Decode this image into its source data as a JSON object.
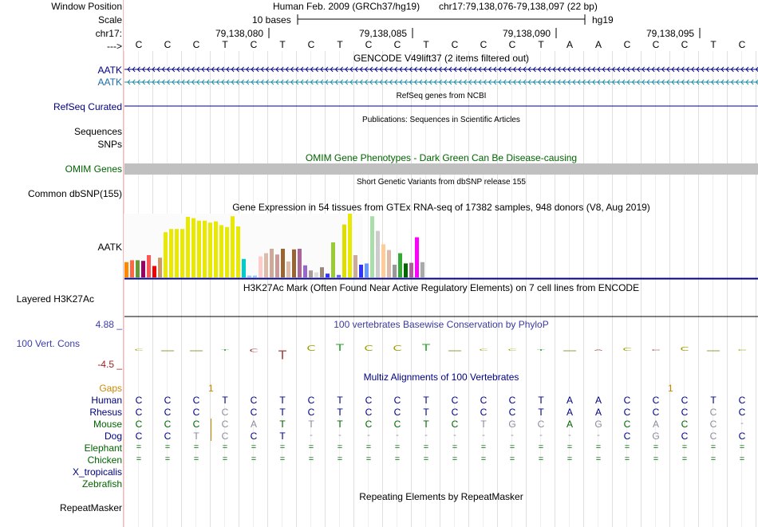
{
  "labels": {
    "window_position": "Window Position",
    "scale": "Scale",
    "chrom": "chr17:",
    "strand": "--->",
    "gene1": "AATK",
    "gene2": "AATK",
    "refseq": "RefSeq Curated",
    "sequences": "Sequences",
    "snps": "SNPs",
    "omim_genes": "OMIM Genes",
    "common_dbsnp": "Common dbSNP(155)",
    "gtex_gene": "AATK",
    "h3k27ac": "Layered H3K27Ac",
    "cons_max": "4.88 _",
    "cons_label": "100 Vert. Cons",
    "cons_min": "-4.5 _",
    "gaps": "Gaps",
    "repeatmasker": "RepeatMasker"
  },
  "header": {
    "assembly": "Human Feb. 2009 (GRCh37/hg19)",
    "position": "chr17:79,138,076-79,138,097 (22 bp)",
    "scale_bases": "10 bases",
    "scale_db": "hg19",
    "ticks": [
      "79,138,080",
      "79,138,085",
      "79,138,090",
      "79,138,095"
    ]
  },
  "sequence": [
    "C",
    "C",
    "C",
    "T",
    "C",
    "T",
    "C",
    "T",
    "C",
    "C",
    "T",
    "C",
    "C",
    "C",
    "T",
    "A",
    "A",
    "C",
    "C",
    "C",
    "T",
    "C"
  ],
  "track_titles": {
    "gencode": "GENCODE V49lift37 (2 items filtered out)",
    "refseq": "RefSeq genes from NCBI",
    "publications": "Publications: Sequences in Scientific Articles",
    "omim": "OMIM Gene Phenotypes - Dark Green Can Be Disease-causing",
    "dbsnp": "Short Genetic Variants from dbSNP release 155",
    "gtex": "Gene Expression in 54 tissues from GTEx RNA-seq of 17382 samples, 948 donors (V8, Aug 2019)",
    "h3k27ac": "H3K27Ac Mark (Often Found Near Active Regulatory Elements) on 7 cell lines from ENCODE",
    "phylop": "100 vertebrates Basewise Conservation by PhyloP",
    "multiz": "Multiz Alignments of 100 Vertebrates",
    "repeatmasker": "Repeating Elements by RepeatMasker"
  },
  "gaps_marks": [
    "1",
    "1"
  ],
  "alignment": [
    {
      "species": "Human",
      "color": "#000080",
      "bases": [
        "C",
        "C",
        "C",
        "T",
        "C",
        "T",
        "C",
        "T",
        "C",
        "C",
        "T",
        "C",
        "C",
        "C",
        "T",
        "A",
        "A",
        "C",
        "C",
        "C",
        "T",
        "C"
      ]
    },
    {
      "species": "Rhesus",
      "color": "#000080",
      "bases": [
        "C",
        "C",
        "C",
        "C",
        "C",
        "T",
        "C",
        "T",
        "C",
        "C",
        "T",
        "C",
        "C",
        "C",
        "T",
        "A",
        "A",
        "C",
        "C",
        "C",
        "C",
        "C"
      ]
    },
    {
      "species": "Mouse",
      "color": "#006400",
      "bases": [
        "C",
        "C",
        "C",
        "C",
        "A",
        "T",
        "T",
        "T",
        "C",
        "C",
        "T",
        "C",
        "T",
        "G",
        "C",
        "A",
        "G",
        "C",
        "A",
        "C",
        "C",
        "-"
      ]
    },
    {
      "species": "Dog",
      "color": "#000080",
      "bases": [
        "C",
        "C",
        "T",
        "C",
        "C",
        "T",
        "-",
        "-",
        "-",
        "-",
        "-",
        "-",
        "-",
        "-",
        "-",
        "-",
        "-",
        "C",
        "G",
        "C",
        "C",
        "C"
      ]
    },
    {
      "species": "Elephant",
      "color": "#006400",
      "bases": [
        "=",
        "=",
        "=",
        "=",
        "=",
        "=",
        "=",
        "=",
        "=",
        "=",
        "=",
        "=",
        "=",
        "=",
        "=",
        "=",
        "=",
        "=",
        "=",
        "=",
        "=",
        "="
      ]
    },
    {
      "species": "Chicken",
      "color": "#006400",
      "bases": [
        "=",
        "=",
        "=",
        "=",
        "=",
        "=",
        "=",
        "=",
        "=",
        "=",
        "=",
        "=",
        "=",
        "=",
        "=",
        "=",
        "=",
        "=",
        "=",
        "=",
        "=",
        "="
      ]
    },
    {
      "species": "X_tropicalis",
      "color": "#000080",
      "bases": []
    },
    {
      "species": "Zebrafish",
      "color": "#006400",
      "bases": []
    }
  ],
  "gtex_values": [
    0.24,
    0.27,
    0.27,
    0.26,
    0.35,
    0.18,
    0.31,
    0.71,
    0.76,
    0.76,
    0.76,
    0.95,
    0.93,
    0.89,
    0.89,
    0.86,
    0.88,
    0.82,
    0.79,
    0.96,
    0.8,
    0.29,
    0.03,
    0.03,
    0.33,
    0.38,
    0.45,
    0.36,
    0.45,
    0.25,
    0.44,
    0.45,
    0.19,
    0.11,
    0.08,
    0.16,
    0.06,
    0.55,
    0.04,
    0.83,
    1.0,
    0.35,
    0.2,
    0.22,
    0.96,
    0.73,
    0.52,
    0.43,
    0.2,
    0.38,
    0.22,
    0.23,
    0.63,
    0.24
  ],
  "gtex_colors": [
    "#ff8800",
    "#ff6644",
    "#669933",
    "#990066",
    "#ff5555",
    "#ee0000",
    "#cc9966",
    "#e8e800",
    "#e8e800",
    "#e8e800",
    "#e8e800",
    "#e8e800",
    "#e8e800",
    "#e8e800",
    "#e8e800",
    "#e8e800",
    "#e8e800",
    "#e8e800",
    "#e8e800",
    "#e8e800",
    "#e8e800",
    "#00cccc",
    "#99ccff",
    "#99ccff",
    "#ffcccc",
    "#ddbbaa",
    "#ccaa99",
    "#cc9999",
    "#996633",
    "#ddbbaa",
    "#996633",
    "#aa6699",
    "#9966cc",
    "#aa9999",
    "#dddddd",
    "#998877",
    "#3333ff",
    "#99cc33",
    "#6666ff",
    "#dddd00",
    "#e8e800",
    "#ccaa99",
    "#3333ff",
    "#6699ff",
    "#aaddaa",
    "#cccccc",
    "#ffcc99",
    "#ddbbaa",
    "#999999",
    "#33aa33",
    "#006600",
    "#aa6699",
    "#ff00ff",
    "#aaaaaa"
  ],
  "phylop_values": [
    0.2,
    0,
    0,
    0.1,
    -0.3,
    -0.8,
    0.5,
    0.6,
    0.5,
    0.5,
    0.6,
    0,
    0.2,
    0.2,
    0.1,
    0,
    -0.1,
    0.3,
    -0.1,
    0.4,
    0,
    0.1
  ],
  "colors": {
    "navy": "#000080",
    "omim_green": "#006400",
    "omim_bar": "#c0c0c0",
    "gencode_blue": "#0a4fa8",
    "gencode_teal": "#1c8aa0",
    "gaps_orange": "#cc8800",
    "phylop_blue": "#3a3aa0",
    "cons_max_blue": "#3c3cb0",
    "cons_min_red": "#a02020"
  }
}
